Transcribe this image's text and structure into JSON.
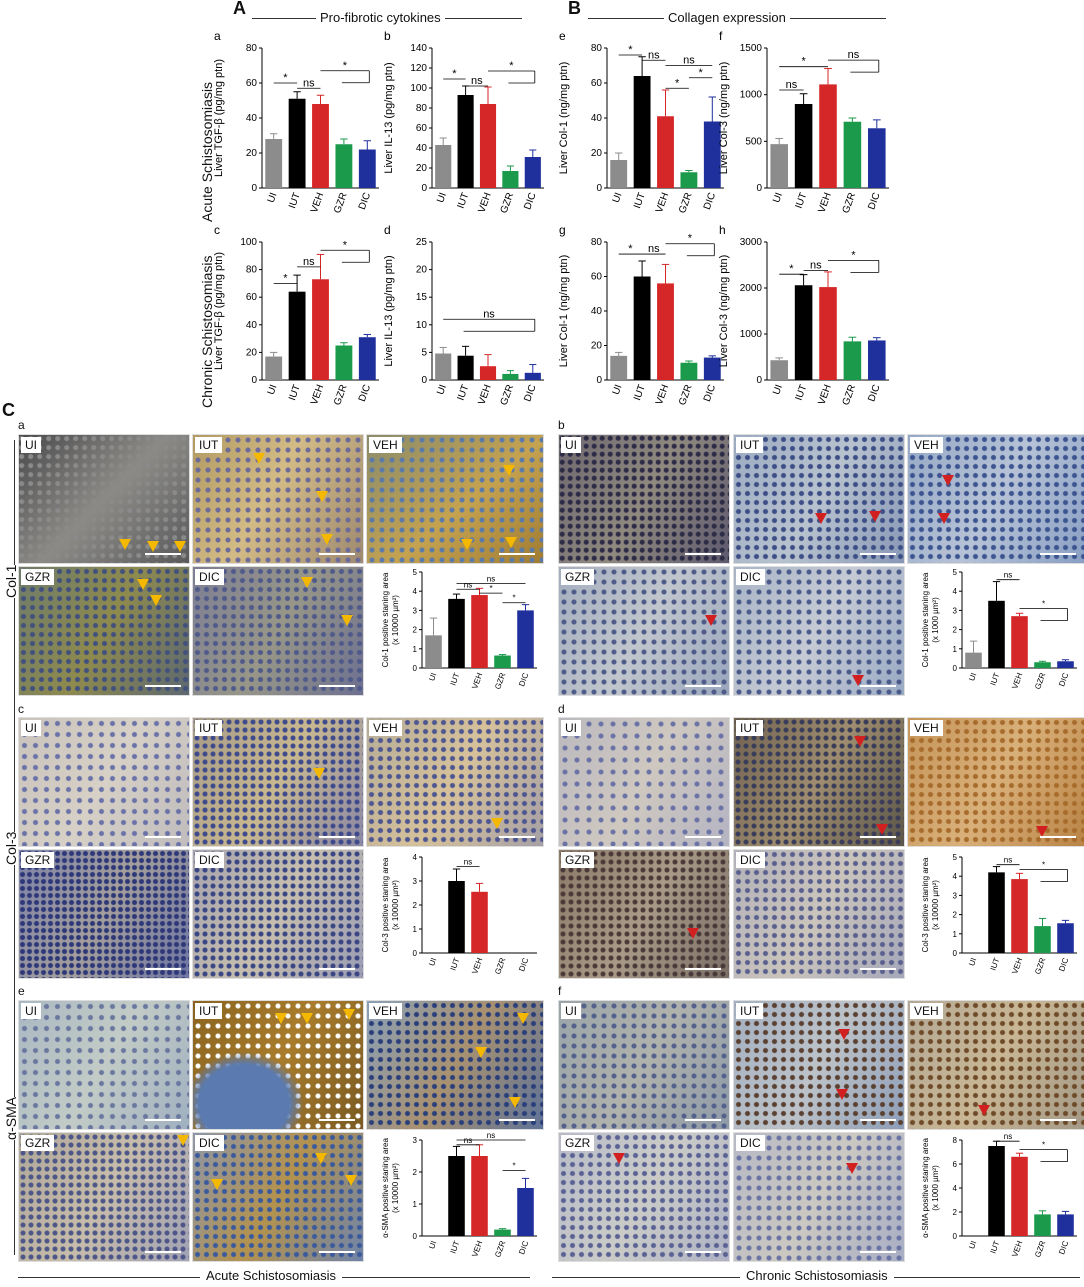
{
  "header": {
    "A": "A",
    "A_title": "Pro-fibrotic cytokines",
    "B": "B",
    "B_title": "Collagen expression",
    "C": "C"
  },
  "row_labels": {
    "acute": "Acute Schistosomiasis",
    "chronic": "Chronic Schistosomiasis",
    "col1": "Col-1",
    "col3": "Col-3",
    "asma": "α-SMA"
  },
  "footer": {
    "acute": "Acute Schistosomiasis",
    "chronic": "Chronic Schistosomiasis"
  },
  "micro_panels": {
    "a": {
      "letter": "a",
      "tags": [
        "UI",
        "IUT",
        "VEH",
        "GZR",
        "DIC"
      ]
    },
    "b": {
      "letter": "b",
      "tags": [
        "UI",
        "IUT",
        "VEH",
        "GZR",
        "DIC"
      ]
    },
    "c": {
      "letter": "c",
      "tags": [
        "UI",
        "IUT",
        "VEH",
        "GZR",
        "DIC"
      ]
    },
    "d": {
      "letter": "d",
      "tags": [
        "UI",
        "IUT",
        "VEH",
        "GZR",
        "DIC"
      ]
    },
    "e": {
      "letter": "e",
      "tags": [
        "UI",
        "IUT",
        "VEH",
        "GZR",
        "DIC"
      ]
    },
    "f": {
      "letter": "f",
      "tags": [
        "UI",
        "IUT",
        "VEH",
        "GZR",
        "DIC"
      ]
    }
  },
  "colors": {
    "UI": "#8c8c8c",
    "IUT": "#000000",
    "VEH": "#d62728",
    "GZR": "#1a9a4a",
    "DIC": "#1f2f9c",
    "yellow_arrow": "#f5b800",
    "red_arrow": "#d21f1f"
  },
  "chart_data": [
    {
      "id": "a",
      "letter": "a",
      "type": "bar",
      "categories": [
        "UI",
        "IUT",
        "VEH",
        "GZR",
        "DIC"
      ],
      "values": [
        28,
        51,
        48,
        25,
        22
      ],
      "errors": [
        3,
        4,
        5,
        3,
        5
      ],
      "ylabel": "Liver TGF-β (pg/mg ptn)",
      "ylim": [
        0,
        80
      ],
      "yticks": [
        "0",
        "20",
        "40",
        "60",
        "80"
      ],
      "annotations": [
        {
          "text": "*",
          "pair": [
            0,
            1
          ],
          "h": 60
        },
        {
          "text": "ns",
          "pair": [
            1,
            2
          ],
          "h": 57
        },
        {
          "text": "*",
          "pair": [
            2,
            [
              3,
              4
            ]
          ],
          "h": 67
        }
      ]
    },
    {
      "id": "b",
      "letter": "b",
      "type": "bar",
      "categories": [
        "UI",
        "IUT",
        "VEH",
        "GZR",
        "DIC"
      ],
      "values": [
        43,
        93,
        84,
        17,
        31
      ],
      "errors": [
        7,
        9,
        17,
        5,
        7
      ],
      "ylabel": "Liver IL-13 (pg/mg ptn)",
      "ylim": [
        0,
        140
      ],
      "yticks": [
        "0",
        "20",
        "40",
        "60",
        "80",
        "100",
        "120",
        "140"
      ],
      "annotations": [
        {
          "text": "*",
          "pair": [
            0,
            1
          ],
          "h": 109
        },
        {
          "text": "ns",
          "pair": [
            1,
            2
          ],
          "h": 102
        },
        {
          "text": "*",
          "pair": [
            2,
            [
              3,
              4
            ]
          ],
          "h": 117
        }
      ]
    },
    {
      "id": "e",
      "letter": "e",
      "type": "bar",
      "categories": [
        "UI",
        "IUT",
        "VEH",
        "GZR",
        "DIC"
      ],
      "values": [
        16,
        64,
        41,
        9,
        38
      ],
      "errors": [
        4,
        11,
        15,
        1,
        14
      ],
      "ylabel": "Liver Col-1 (ng/mg ptn)",
      "ylim": [
        0,
        80
      ],
      "yticks": [
        "0",
        "20",
        "40",
        "60",
        "80"
      ],
      "annotations": [
        {
          "text": "*",
          "pair": [
            0,
            1
          ],
          "h": 76
        },
        {
          "text": "ns",
          "pair": [
            1,
            2
          ],
          "h": 73
        },
        {
          "text": "ns",
          "pair": [
            2,
            4
          ],
          "h": 70
        },
        {
          "text": "*",
          "pair": [
            2,
            3
          ],
          "h": 57
        },
        {
          "text": "*",
          "pair": [
            3,
            4
          ],
          "h": 63
        }
      ]
    },
    {
      "id": "f",
      "letter": "f",
      "type": "bar",
      "categories": [
        "UI",
        "IUT",
        "VEH",
        "GZR",
        "DIC"
      ],
      "values": [
        470,
        900,
        1110,
        710,
        640
      ],
      "errors": [
        60,
        110,
        170,
        40,
        90
      ],
      "ylabel": "Liver Col-3 (ng/mg ptn)",
      "ylim": [
        0,
        1500
      ],
      "yticks": [
        "0",
        "500",
        "1000",
        "1500"
      ],
      "annotations": [
        {
          "text": "ns",
          "pair": [
            0,
            1
          ],
          "h": 1050
        },
        {
          "text": "*",
          "pair": [
            0,
            2
          ],
          "h": 1300
        },
        {
          "text": "ns",
          "pair": [
            2,
            [
              3,
              4
            ]
          ],
          "h": 1370
        }
      ]
    },
    {
      "id": "c",
      "letter": "c",
      "type": "bar",
      "categories": [
        "UI",
        "IUT",
        "VEH",
        "GZR",
        "DIC"
      ],
      "values": [
        17,
        64,
        73,
        25,
        31
      ],
      "errors": [
        3,
        12,
        18,
        2,
        2
      ],
      "ylabel": "Liver TGF-β (pg/mg ptn)",
      "ylim": [
        0,
        100
      ],
      "yticks": [
        "0",
        "20",
        "40",
        "60",
        "80",
        "100"
      ],
      "annotations": [
        {
          "text": "*",
          "pair": [
            0,
            1
          ],
          "h": 70
        },
        {
          "text": "ns",
          "pair": [
            1,
            2
          ],
          "h": 82
        },
        {
          "text": "*",
          "pair": [
            2,
            [
              3,
              4
            ]
          ],
          "h": 94
        }
      ]
    },
    {
      "id": "d",
      "letter": "d",
      "type": "bar",
      "categories": [
        "UI",
        "IUT",
        "VEH",
        "GZR",
        "DIC"
      ],
      "values": [
        4.8,
        4.4,
        2.5,
        1.1,
        1.3
      ],
      "errors": [
        1.1,
        1.7,
        2.1,
        0.6,
        1.5
      ],
      "ylabel": "Liver IL-13 (pg/mg ptn)",
      "ylim": [
        0,
        25
      ],
      "yticks": [
        "0",
        "5",
        "10",
        "15",
        "20",
        "25"
      ],
      "annotations": [
        {
          "text": "ns",
          "pair": [
            0,
            [
              1,
              2,
              3,
              4
            ]
          ],
          "h": 11
        }
      ]
    },
    {
      "id": "g",
      "letter": "g",
      "type": "bar",
      "categories": [
        "UI",
        "IUT",
        "VEH",
        "GZR",
        "DIC"
      ],
      "values": [
        14,
        60,
        56,
        10,
        13
      ],
      "errors": [
        2,
        9,
        11,
        1,
        1
      ],
      "ylabel": "Liver Col-1 (ng/mg ptn)",
      "ylim": [
        0,
        80
      ],
      "yticks": [
        "0",
        "20",
        "40",
        "60",
        "80"
      ],
      "annotations": [
        {
          "text": "*",
          "pair": [
            0,
            1
          ],
          "h": 73
        },
        {
          "text": "ns",
          "pair": [
            1,
            2
          ],
          "h": 73
        },
        {
          "text": "*",
          "pair": [
            2,
            [
              3,
              4
            ]
          ],
          "h": 79
        }
      ]
    },
    {
      "id": "h",
      "letter": "h",
      "type": "bar",
      "categories": [
        "UI",
        "IUT",
        "VEH",
        "GZR",
        "DIC"
      ],
      "values": [
        430,
        2060,
        2020,
        840,
        860
      ],
      "errors": [
        50,
        230,
        330,
        90,
        60
      ],
      "ylabel": "Liver Col-3 (ng/mg ptn)",
      "ylim": [
        0,
        3000
      ],
      "yticks": [
        "0",
        "1000",
        "2000",
        "3000"
      ],
      "annotations": [
        {
          "text": "*",
          "pair": [
            0,
            1
          ],
          "h": 2300
        },
        {
          "text": "ns",
          "pair": [
            1,
            2
          ],
          "h": 2380
        },
        {
          "text": "*",
          "pair": [
            2,
            [
              3,
              4
            ]
          ],
          "h": 2600
        }
      ]
    },
    {
      "id": "Ca",
      "type": "bar",
      "categories": [
        "UI",
        "IUT",
        "VEH",
        "GZR",
        "DIC"
      ],
      "values": [
        1.7,
        3.6,
        3.8,
        0.65,
        3.0
      ],
      "errors": [
        0.9,
        0.25,
        0.35,
        0.05,
        0.3
      ],
      "ylabel": "Col-1 positive staning area",
      "ylabel2": "(x 10000 µm²)",
      "ylim": [
        0,
        5
      ],
      "yticks": [
        "0",
        "1",
        "2",
        "3",
        "4",
        "5"
      ],
      "annotations": [
        {
          "text": "ns",
          "pair": [
            1,
            2
          ],
          "h": 4.1
        },
        {
          "text": "ns",
          "pair": [
            1,
            4
          ],
          "h": 4.4
        },
        {
          "text": "*",
          "pair": [
            2,
            3
          ],
          "h": 3.9
        },
        {
          "text": "*",
          "pair": [
            3,
            4
          ],
          "h": 3.4
        }
      ]
    },
    {
      "id": "Cb",
      "type": "bar",
      "categories": [
        "UI",
        "IUT",
        "VEH",
        "GZR",
        "DIC"
      ],
      "values": [
        0.8,
        3.5,
        2.7,
        0.3,
        0.35
      ],
      "errors": [
        0.6,
        1.0,
        0.15,
        0.05,
        0.08
      ],
      "ylabel": "Col-1 positive staning area",
      "ylabel2": "(x 1000 µm²)",
      "ylim": [
        0,
        5
      ],
      "yticks": [
        "0",
        "1",
        "2",
        "3",
        "4",
        "5"
      ],
      "annotations": [
        {
          "text": "ns",
          "pair": [
            1,
            2
          ],
          "h": 4.6
        },
        {
          "text": "*",
          "pair": [
            2,
            [
              3,
              4
            ]
          ],
          "h": 3.1
        }
      ]
    },
    {
      "id": "Cc",
      "type": "bar",
      "categories": [
        "UI",
        "IUT",
        "VEH",
        "GZR",
        "DIC"
      ],
      "values": [
        0,
        3.0,
        2.55,
        0,
        0
      ],
      "errors": [
        0,
        0.5,
        0.35,
        0,
        0
      ],
      "ylabel": "Col-3 positive staning area",
      "ylabel2": "(x 10000 µm²)",
      "ylim": [
        0,
        4
      ],
      "yticks": [
        "0",
        "1",
        "2",
        "3",
        "4"
      ],
      "annotations": [
        {
          "text": "ns",
          "pair": [
            1,
            2
          ],
          "h": 3.6
        }
      ]
    },
    {
      "id": "Cd",
      "type": "bar",
      "categories": [
        "UI",
        "IUT",
        "VEH",
        "GZR",
        "DIC"
      ],
      "values": [
        0,
        4.2,
        3.85,
        1.4,
        1.55
      ],
      "errors": [
        0,
        0.3,
        0.3,
        0.4,
        0.15
      ],
      "ylabel": "Col-3 positive staning area",
      "ylabel2": "(x 10000 µm²)",
      "ylim": [
        0,
        5
      ],
      "yticks": [
        "0",
        "1",
        "2",
        "3",
        "4",
        "5"
      ],
      "annotations": [
        {
          "text": "ns",
          "pair": [
            1,
            2
          ],
          "h": 4.6
        },
        {
          "text": "*",
          "pair": [
            2,
            [
              3,
              4
            ]
          ],
          "h": 4.35
        }
      ]
    },
    {
      "id": "Ce",
      "type": "bar",
      "categories": [
        "UI",
        "IUT",
        "VEH",
        "GZR",
        "DIC"
      ],
      "values": [
        0,
        2.5,
        2.5,
        0.2,
        1.5
      ],
      "errors": [
        0,
        0.3,
        0.35,
        0.03,
        0.3
      ],
      "ylabel": "α-SMA positive staning area",
      "ylabel2": "(x 10000 µm²)",
      "ylim": [
        0,
        3
      ],
      "yticks": [
        "0",
        "1",
        "2",
        "3"
      ],
      "annotations": [
        {
          "text": "ns",
          "pair": [
            1,
            2
          ],
          "h": 2.85
        },
        {
          "text": "ns",
          "pair": [
            1,
            4
          ],
          "h": 3.0
        },
        {
          "text": "*",
          "pair": [
            3,
            4
          ],
          "h": 2.05
        }
      ]
    },
    {
      "id": "Cf",
      "type": "bar",
      "categories": [
        "UI",
        "IUT",
        "VEH",
        "GZR",
        "DIC"
      ],
      "values": [
        0,
        7.5,
        6.6,
        1.8,
        1.8
      ],
      "errors": [
        0,
        0.4,
        0.3,
        0.3,
        0.25
      ],
      "ylabel": "α-SMA positive staning area",
      "ylabel2": "(x 1000 µm²)",
      "ylim": [
        0,
        8
      ],
      "yticks": [
        "0",
        "2",
        "4",
        "6",
        "8"
      ],
      "annotations": [
        {
          "text": "ns",
          "pair": [
            1,
            2
          ],
          "h": 7.9
        },
        {
          "text": "*",
          "pair": [
            2,
            [
              3,
              4
            ]
          ],
          "h": 7.2
        }
      ]
    }
  ]
}
